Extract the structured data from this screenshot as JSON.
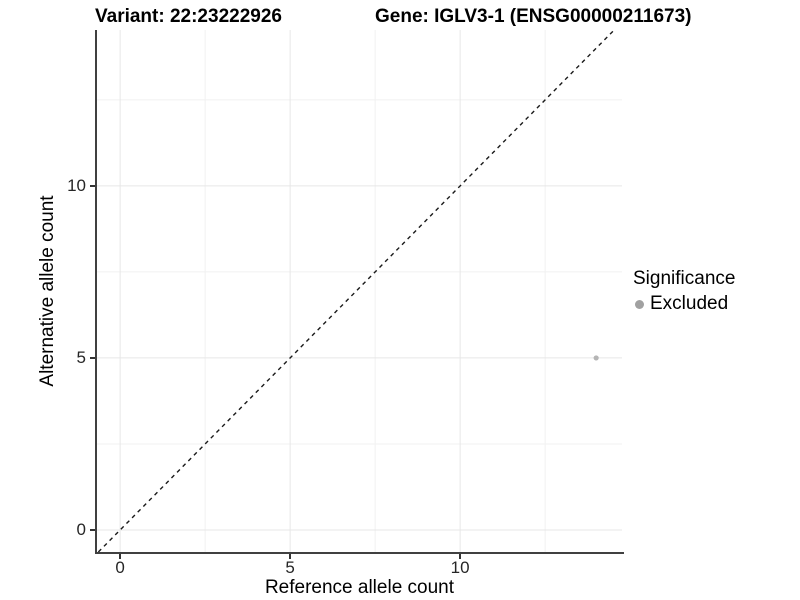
{
  "titles": {
    "variant": "Variant: 22:23222926",
    "gene": "Gene: IGLV3-1 (ENSG00000211673)"
  },
  "legend": {
    "title": "Significance",
    "items": [
      {
        "label": "Excluded",
        "color": "#a1a1a1"
      }
    ]
  },
  "chart_data": {
    "type": "scatter",
    "title": "Variant: 22:23222926 — Gene: IGLV3-1 (ENSG00000211673)",
    "xlabel": "Reference allele count",
    "ylabel": "Alternative allele count",
    "xlim": [
      -0.68,
      14.76
    ],
    "ylim": [
      -0.64,
      14.53
    ],
    "x_major_ticks": [
      0,
      5,
      10
    ],
    "y_major_ticks": [
      0,
      5,
      10
    ],
    "x_minor_gridlines": [
      2.5,
      7.5,
      12.5
    ],
    "y_minor_gridlines": [
      2.5,
      7.5,
      12.5
    ],
    "grid": true,
    "legend_position": "right",
    "identity_line": {
      "type": "y=x",
      "style": "dashed",
      "color": "#1a1a1a",
      "dash": [
        4,
        4
      ],
      "width": 1.4
    },
    "series": [
      {
        "name": "Excluded",
        "color": "#b5b5b5",
        "point_radius": 2.6,
        "points": [
          {
            "x": 14,
            "y": 5
          }
        ]
      }
    ],
    "colors": {
      "major_gridline": "#e7e7e7",
      "minor_gridline": "#f1f1f1",
      "axis_line": "#404040",
      "tick_mark": "#333333",
      "tick_text": "#262626"
    }
  }
}
